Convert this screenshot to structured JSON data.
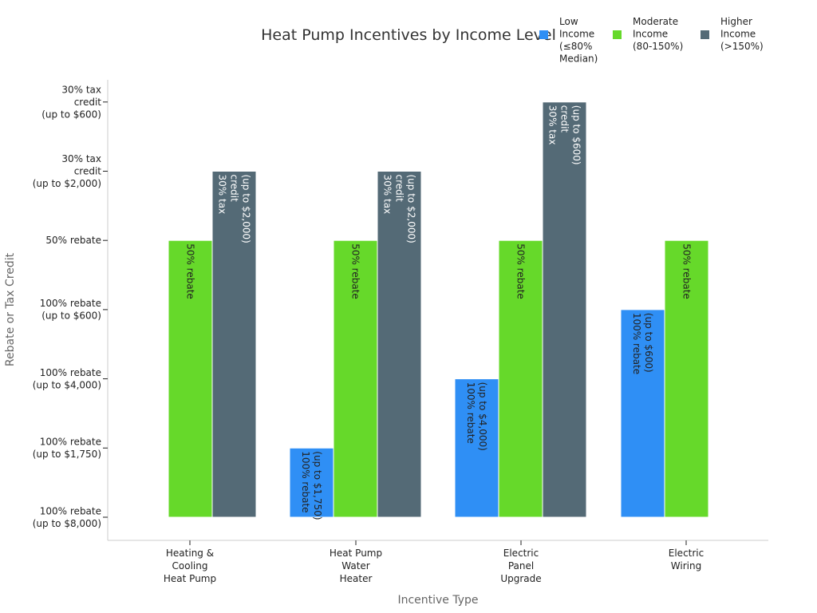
{
  "chart_data": {
    "type": "bar",
    "title": "Heat Pump Incentives by Income Level",
    "xlabel": "Incentive Type",
    "ylabel": "Rebate or Tax Credit",
    "categories": [
      [
        "Heating &",
        "Cooling",
        "Heat Pump"
      ],
      [
        "Heat Pump",
        "Water",
        "Heater"
      ],
      [
        "Electric",
        "Panel",
        "Upgrade"
      ],
      [
        "Electric",
        "Wiring"
      ]
    ],
    "y_levels": [
      [
        "100% rebate",
        "(up to $8,000)"
      ],
      [
        "100% rebate",
        "(up to $1,750)"
      ],
      [
        "100% rebate",
        "(up to $4,000)"
      ],
      [
        "100% rebate",
        "(up to $600)"
      ],
      [
        "50% rebate"
      ],
      [
        "30% tax",
        "credit",
        "(up to $2,000)"
      ],
      [
        "30% tax",
        "credit",
        "(up to $600)"
      ]
    ],
    "legend_position": "top-right",
    "grid": false,
    "series": [
      {
        "name": [
          "Low",
          "Income",
          "(≤80%",
          "Median)"
        ],
        "color": "#2f8ff5",
        "values": [
          null,
          1,
          2,
          3
        ]
      },
      {
        "name": [
          "Moderate",
          "Income",
          "(80-150%)"
        ],
        "color": "#66d92a",
        "values": [
          4,
          4,
          4,
          4
        ]
      },
      {
        "name": [
          "Higher",
          "Income",
          "(>150%)"
        ],
        "color": "#546a76",
        "values": [
          5,
          5,
          6,
          null
        ]
      }
    ]
  }
}
